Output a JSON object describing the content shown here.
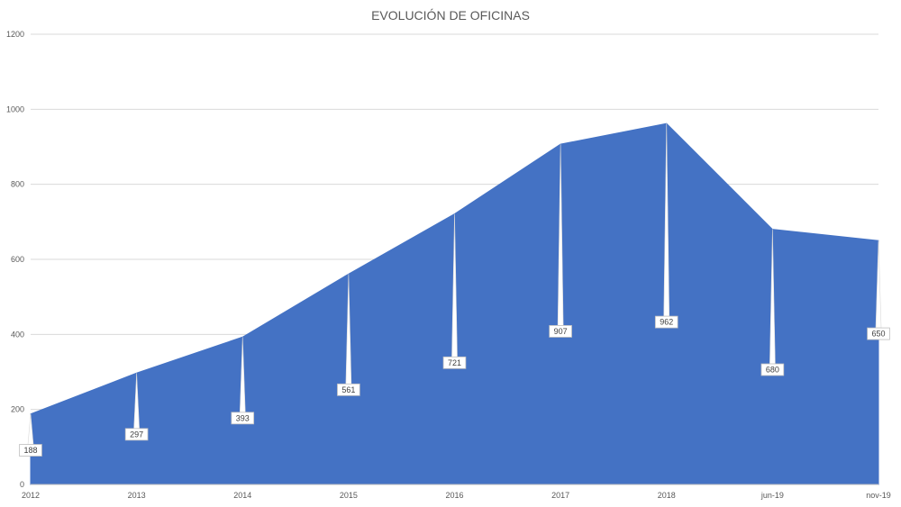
{
  "chart_data": {
    "type": "area",
    "title": "EVOLUCIÓN DE OFICINAS",
    "xlabel": "",
    "ylabel": "",
    "categories": [
      "2012",
      "2013",
      "2014",
      "2015",
      "2016",
      "2017",
      "2018",
      "jun-19",
      "nov-19"
    ],
    "values": [
      188,
      297,
      393,
      561,
      721,
      907,
      962,
      680,
      650
    ],
    "ylim": [
      0,
      1200
    ],
    "yticks": [
      0,
      200,
      400,
      600,
      800,
      1000,
      1200
    ],
    "grid": true,
    "legend": "none",
    "fill_color": "#4472C4"
  }
}
